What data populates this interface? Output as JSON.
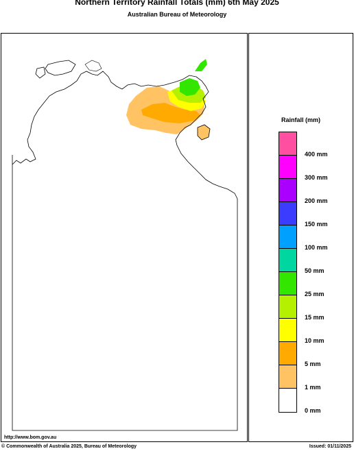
{
  "header": {
    "title": "Northern Territory Rainfall Totals (mm) 6th May 2025",
    "subtitle": "Australian Bureau of Meteorology"
  },
  "legend": {
    "title": "Rainfall (mm)",
    "classes": [
      {
        "label": "400 mm",
        "color": "#ff4fa1"
      },
      {
        "label": "300 mm",
        "color": "#ff00ff"
      },
      {
        "label": "200 mm",
        "color": "#aa00ff"
      },
      {
        "label": "150 mm",
        "color": "#3c3cff"
      },
      {
        "label": "100 mm",
        "color": "#00a0ff"
      },
      {
        "label": "50 mm",
        "color": "#00d7a0"
      },
      {
        "label": "25 mm",
        "color": "#32e600"
      },
      {
        "label": "15 mm",
        "color": "#b4f000"
      },
      {
        "label": "10 mm",
        "color": "#ffff00"
      },
      {
        "label": "5 mm",
        "color": "#ffaa00"
      },
      {
        "label": "1 mm",
        "color": "#ffc364"
      },
      {
        "label": "",
        "color": "#ffffff"
      }
    ],
    "bottom_label": "0 mm"
  },
  "footer": {
    "url": "http://www.bom.gov.au",
    "copyright": "© Commonwealth of Australia 2025, Bureau of Meteorology",
    "issued": "Issued: 01/11/2025"
  }
}
